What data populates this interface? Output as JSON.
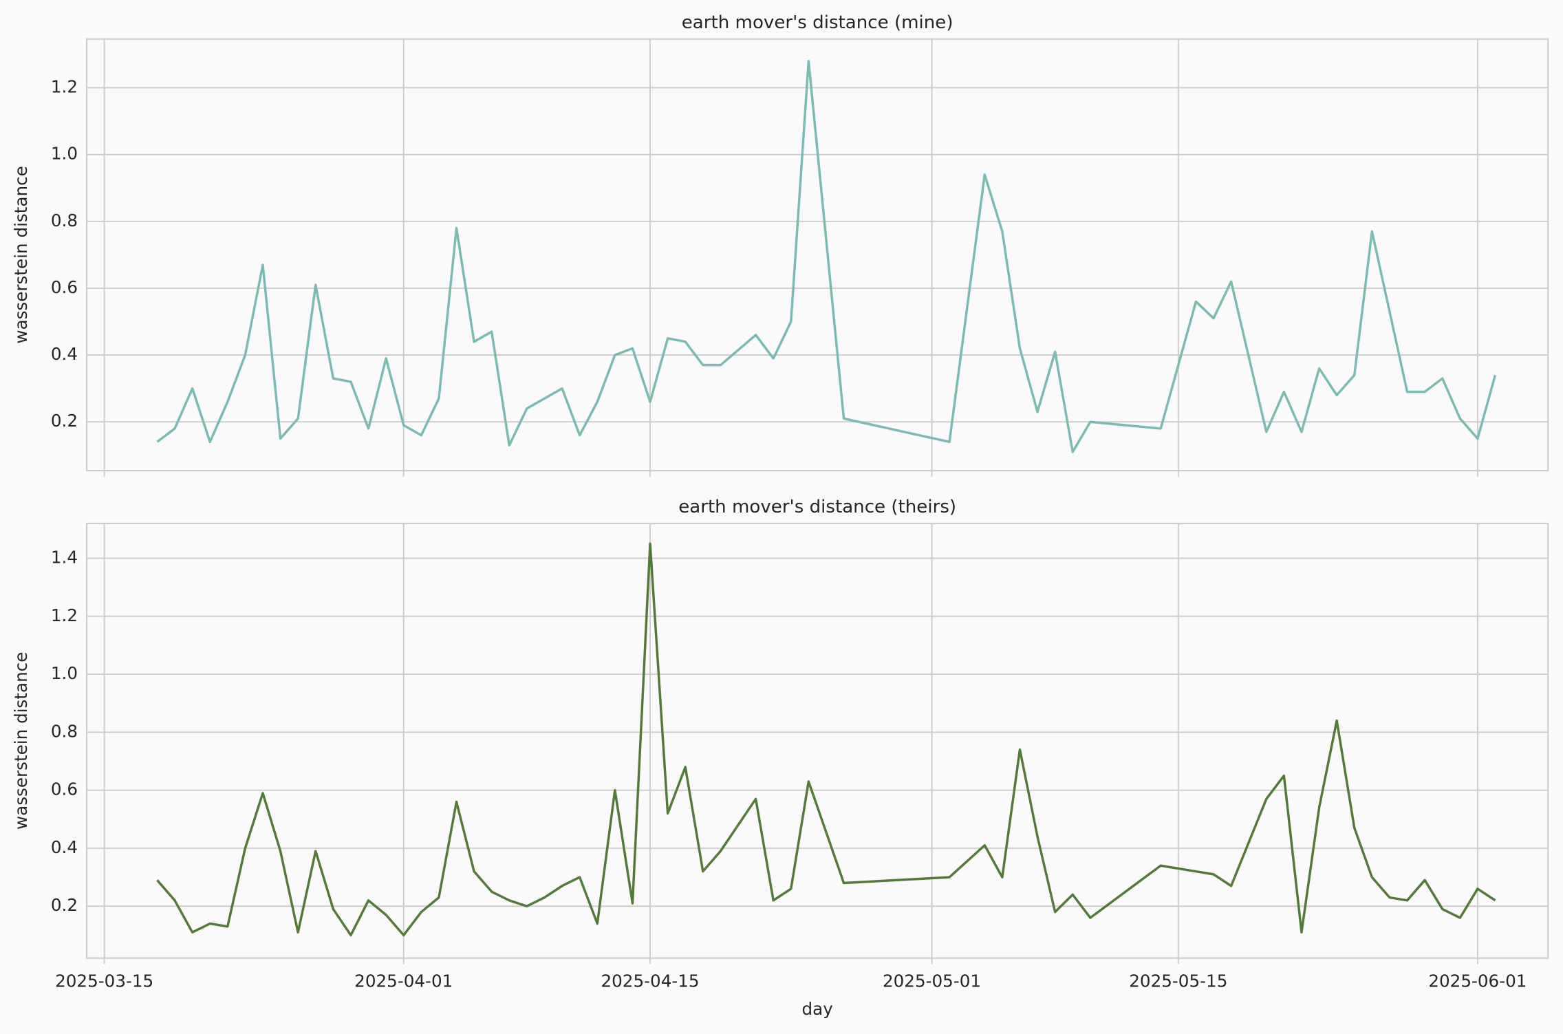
{
  "chart_data": [
    {
      "type": "line",
      "title": "earth mover's distance (mine)",
      "ylabel": "wasserstein distance",
      "x": [
        "2025-03-18",
        "2025-03-19",
        "2025-03-20",
        "2025-03-21",
        "2025-03-22",
        "2025-03-23",
        "2025-03-24",
        "2025-03-25",
        "2025-03-26",
        "2025-03-27",
        "2025-03-28",
        "2025-03-29",
        "2025-03-30",
        "2025-03-31",
        "2025-04-01",
        "2025-04-02",
        "2025-04-03",
        "2025-04-04",
        "2025-04-05",
        "2025-04-06",
        "2025-04-07",
        "2025-04-08",
        "2025-04-09",
        "2025-04-10",
        "2025-04-11",
        "2025-04-12",
        "2025-04-13",
        "2025-04-14",
        "2025-04-15",
        "2025-04-16",
        "2025-04-17",
        "2025-04-18",
        "2025-04-19",
        "2025-04-21",
        "2025-04-22",
        "2025-04-23",
        "2025-04-24",
        "2025-04-26",
        "2025-05-02",
        "2025-05-04",
        "2025-05-05",
        "2025-05-06",
        "2025-05-07",
        "2025-05-08",
        "2025-05-09",
        "2025-05-10",
        "2025-05-14",
        "2025-05-16",
        "2025-05-17",
        "2025-05-18",
        "2025-05-20",
        "2025-05-21",
        "2025-05-22",
        "2025-05-23",
        "2025-05-24",
        "2025-05-25",
        "2025-05-26",
        "2025-05-27",
        "2025-05-28",
        "2025-05-29",
        "2025-05-30",
        "2025-05-31",
        "2025-06-01",
        "2025-06-02"
      ],
      "series": [
        {
          "color": "#7bbcaa",
          "values": [
            0.14,
            0.18,
            0.3,
            0.14,
            0.26,
            0.4,
            0.67,
            0.15,
            0.21,
            0.61,
            0.33,
            0.32,
            0.18,
            0.39,
            0.19,
            0.16,
            0.27,
            0.78,
            0.44,
            0.47,
            0.13,
            0.24,
            0.27,
            0.3,
            0.16,
            0.26,
            0.4,
            0.42,
            0.26,
            0.45,
            0.44,
            0.37,
            0.37,
            0.46,
            0.39,
            0.5,
            1.28,
            0.21,
            0.14,
            0.94,
            0.77,
            0.42,
            0.23,
            0.41,
            0.11,
            0.2,
            0.18,
            0.56,
            0.51,
            0.62,
            0.17,
            0.29,
            0.17,
            0.36,
            0.28,
            0.34,
            0.77,
            0.53,
            0.29,
            0.29,
            0.33,
            0.21,
            0.15,
            0.34
          ]
        }
      ],
      "xlim": [
        "2025-03-14",
        "2025-06-05"
      ],
      "xticks": [
        "2025-03-15",
        "2025-04-01",
        "2025-04-15",
        "2025-05-01",
        "2025-05-15",
        "2025-06-01"
      ],
      "ylim": [
        0.054,
        1.346
      ],
      "yticks": [
        0.2,
        0.4,
        0.6,
        0.8,
        {
          "value": 1,
          "label": "1.0"
        },
        1.2
      ],
      "grid": true
    },
    {
      "type": "line",
      "title": "earth mover's distance (theirs)",
      "ylabel": "wasserstein distance",
      "xlabel": "day",
      "x": [
        "2025-03-18",
        "2025-03-19",
        "2025-03-20",
        "2025-03-21",
        "2025-03-22",
        "2025-03-23",
        "2025-03-24",
        "2025-03-25",
        "2025-03-26",
        "2025-03-27",
        "2025-03-28",
        "2025-03-29",
        "2025-03-30",
        "2025-03-31",
        "2025-04-01",
        "2025-04-02",
        "2025-04-03",
        "2025-04-04",
        "2025-04-05",
        "2025-04-06",
        "2025-04-07",
        "2025-04-08",
        "2025-04-09",
        "2025-04-10",
        "2025-04-11",
        "2025-04-12",
        "2025-04-13",
        "2025-04-14",
        "2025-04-15",
        "2025-04-16",
        "2025-04-17",
        "2025-04-18",
        "2025-04-19",
        "2025-04-21",
        "2025-04-22",
        "2025-04-23",
        "2025-04-24",
        "2025-04-26",
        "2025-05-02",
        "2025-05-04",
        "2025-05-05",
        "2025-05-06",
        "2025-05-07",
        "2025-05-08",
        "2025-05-09",
        "2025-05-10",
        "2025-05-14",
        "2025-05-16",
        "2025-05-17",
        "2025-05-18",
        "2025-05-20",
        "2025-05-21",
        "2025-05-22",
        "2025-05-23",
        "2025-05-24",
        "2025-05-25",
        "2025-05-26",
        "2025-05-27",
        "2025-05-28",
        "2025-05-29",
        "2025-05-30",
        "2025-05-31",
        "2025-06-01",
        "2025-06-02"
      ],
      "series": [
        {
          "color": "#547a39",
          "values": [
            0.29,
            0.22,
            0.11,
            0.14,
            0.13,
            0.4,
            0.59,
            0.39,
            0.11,
            0.39,
            0.19,
            0.1,
            0.22,
            0.17,
            0.1,
            0.18,
            0.23,
            0.56,
            0.32,
            0.25,
            0.22,
            0.2,
            0.23,
            0.27,
            0.3,
            0.14,
            0.6,
            0.21,
            1.45,
            0.52,
            0.68,
            0.32,
            0.39,
            0.57,
            0.22,
            0.26,
            0.63,
            0.28,
            0.3,
            0.41,
            0.3,
            0.74,
            0.44,
            0.18,
            0.24,
            0.16,
            0.34,
            0.32,
            0.31,
            0.27,
            0.57,
            0.65,
            0.11,
            0.54,
            0.84,
            0.47,
            0.3,
            0.23,
            0.22,
            0.29,
            0.19,
            0.16,
            0.26,
            0.22
          ]
        }
      ],
      "xlim": [
        "2025-03-14",
        "2025-06-05"
      ],
      "xticks": [
        "2025-03-15",
        "2025-04-01",
        "2025-04-15",
        "2025-05-01",
        "2025-05-15",
        "2025-06-01"
      ],
      "ylim": [
        0.021,
        1.52
      ],
      "yticks": [
        0.2,
        0.4,
        0.6,
        0.8,
        {
          "value": 1,
          "label": "1.0"
        },
        1.2,
        1.4
      ],
      "grid": true
    }
  ]
}
